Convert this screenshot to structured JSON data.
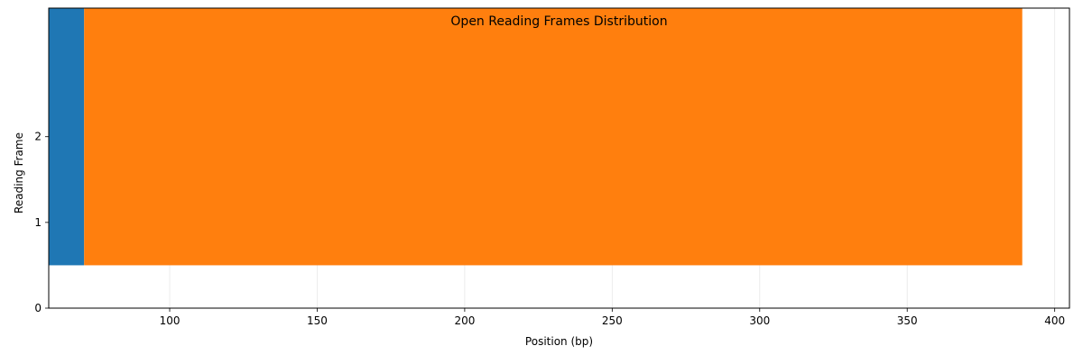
{
  "chart_data": {
    "type": "bar",
    "orientation": "horizontal-segments",
    "title": "Open Reading Frames Distribution",
    "xlabel": "Position (bp)",
    "ylabel": "Reading Frame",
    "xlim": [
      59,
      405
    ],
    "ylim": [
      0,
      3.5
    ],
    "xticks": [
      100,
      150,
      200,
      250,
      300,
      350,
      400
    ],
    "yticks": [
      0,
      1,
      2
    ],
    "grid": "x-only",
    "segments": [
      {
        "start": 59,
        "end": 71,
        "y_bottom": 0.5,
        "y_top": 3.5,
        "color": "#1f77b4"
      },
      {
        "start": 71,
        "end": 389,
        "y_bottom": 0.5,
        "y_top": 3.5,
        "color": "#ff7f0e"
      }
    ]
  }
}
